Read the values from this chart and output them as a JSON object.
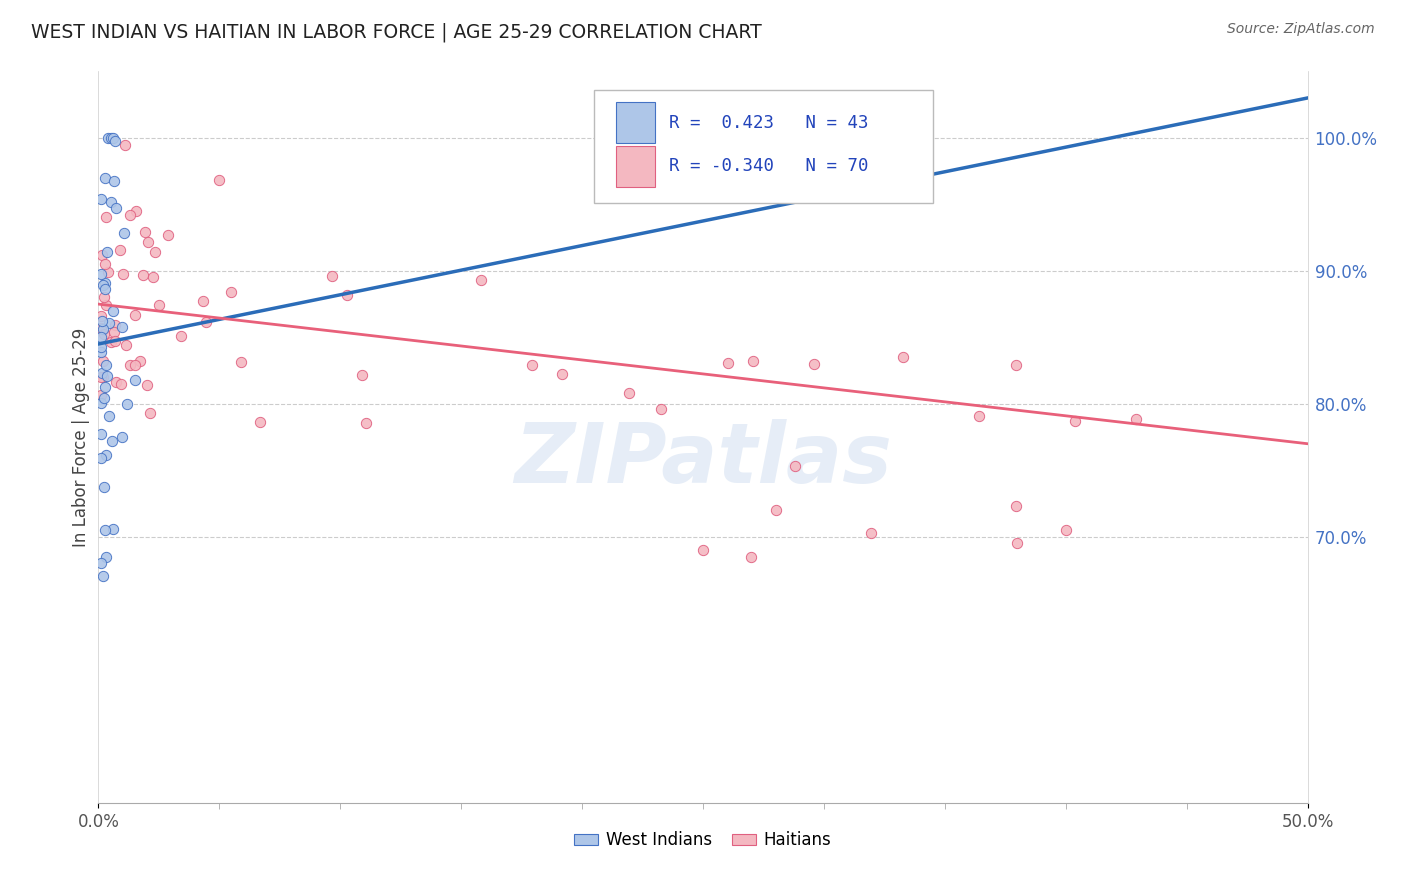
{
  "title": "WEST INDIAN VS HAITIAN IN LABOR FORCE | AGE 25-29 CORRELATION CHART",
  "source": "Source: ZipAtlas.com",
  "ylabel": "In Labor Force | Age 25-29",
  "right_ytick_vals": [
    0.7,
    0.8,
    0.9,
    1.0
  ],
  "right_ytick_labels": [
    "70.0%",
    "80.0%",
    "90.0%",
    "100.0%"
  ],
  "xtick_vals": [
    0.0,
    0.5
  ],
  "xtick_labels": [
    "0.0%",
    "50.0%"
  ],
  "west_indian_color": "#aec6e8",
  "west_indian_edge": "#4472c4",
  "haitian_color": "#f4b8c1",
  "haitian_edge": "#e06080",
  "trend_blue": "#2b6cb8",
  "trend_pink": "#e8607a",
  "watermark": "ZIPatlas",
  "xlim": [
    0.0,
    0.5
  ],
  "ylim": [
    0.5,
    1.05
  ],
  "wi_trend_x0": 0.0,
  "wi_trend_y0": 0.845,
  "wi_trend_x1": 0.5,
  "wi_trend_y1": 1.03,
  "hai_trend_x0": 0.0,
  "hai_trend_y0": 0.875,
  "hai_trend_x1": 0.5,
  "hai_trend_y1": 0.77
}
